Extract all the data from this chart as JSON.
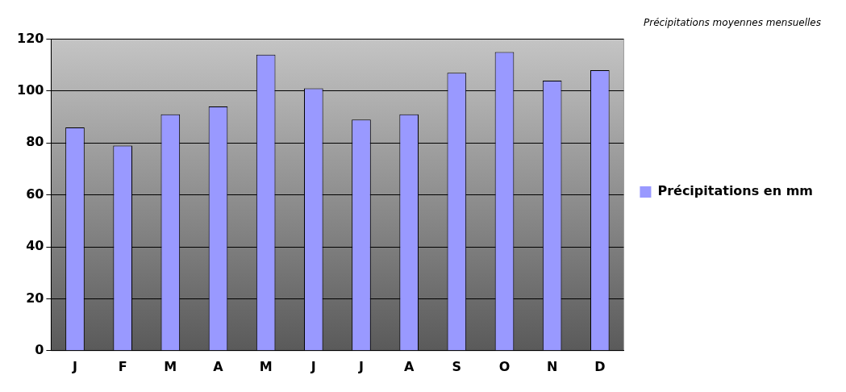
{
  "chart_data": {
    "type": "bar",
    "title": "Précipitations moyennes mensuelles",
    "categories": [
      "J",
      "F",
      "M",
      "A",
      "M",
      "J",
      "J",
      "A",
      "S",
      "O",
      "N",
      "D"
    ],
    "series": [
      {
        "name": "Précipitations en mm",
        "color": "#9999ff",
        "values": [
          86,
          79,
          91,
          94,
          114,
          101,
          89,
          91,
          107,
          115,
          104,
          108
        ]
      }
    ],
    "ylim": [
      0,
      120
    ],
    "yticks": [
      0,
      20,
      40,
      60,
      80,
      100,
      120
    ],
    "grid": "y",
    "legend": "right"
  }
}
